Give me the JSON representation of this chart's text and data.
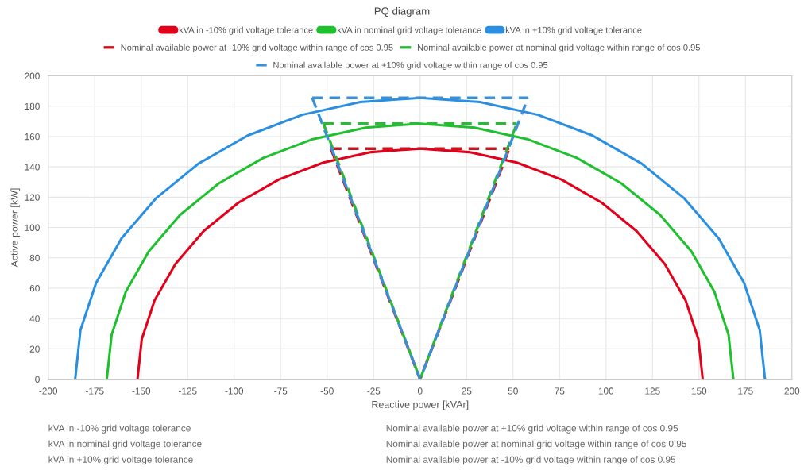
{
  "chart_data": {
    "type": "line",
    "title": "PQ diagram",
    "xlabel": "Reactive power [kVAr]",
    "ylabel": "Active power [kW]",
    "xlim": [
      -200,
      200
    ],
    "xticks": [
      -200,
      -175,
      -150,
      -125,
      -100,
      -75,
      -50,
      -25,
      0,
      25,
      50,
      75,
      100,
      125,
      150,
      175,
      200
    ],
    "ylim": [
      0,
      200
    ],
    "yticks": [
      0,
      20,
      40,
      60,
      80,
      100,
      120,
      140,
      160,
      180,
      200
    ],
    "grid": true,
    "legend": "top",
    "marker": "none",
    "series": [
      {
        "name": "kVA in -10% grid voltage tolerance",
        "color": "#e3001b",
        "line_style": "solid",
        "x": [
          -152,
          -149.7,
          -142.8,
          -131.6,
          -116.4,
          -97.7,
          -76,
          -52,
          -26.4,
          0,
          26.4,
          52,
          76,
          97.7,
          116.4,
          131.6,
          142.8,
          149.7,
          152
        ],
        "values": [
          0,
          26.4,
          52,
          76,
          97.7,
          116.4,
          131.6,
          142.8,
          149.7,
          152,
          149.7,
          142.8,
          131.6,
          116.4,
          97.7,
          76,
          52,
          26.4,
          0
        ]
      },
      {
        "name": "kVA in nominal grid voltage tolerance",
        "color": "#1ec02e",
        "line_style": "solid",
        "x": [
          -168.5,
          -165.9,
          -158.3,
          -145.9,
          -129.1,
          -108.3,
          -84.3,
          -57.6,
          -29.3,
          0,
          29.3,
          57.6,
          84.3,
          108.3,
          129.1,
          145.9,
          158.3,
          165.9,
          168.5
        ],
        "values": [
          0,
          29.3,
          57.6,
          84.3,
          108.3,
          129.1,
          145.9,
          158.3,
          165.9,
          168.5,
          165.9,
          158.3,
          145.9,
          129.1,
          108.3,
          84.3,
          57.6,
          29.3,
          0
        ]
      },
      {
        "name": "kVA in +10% grid voltage tolerance",
        "color": "#2a8fe0",
        "line_style": "solid",
        "x": [
          -185.5,
          -182.7,
          -174.3,
          -160.6,
          -142.1,
          -119.2,
          -92.8,
          -63.4,
          -32.2,
          0,
          32.2,
          63.4,
          92.8,
          119.2,
          142.1,
          160.6,
          174.3,
          182.7,
          185.5
        ],
        "values": [
          0,
          32.2,
          63.4,
          92.8,
          119.2,
          142.1,
          160.6,
          174.3,
          182.7,
          185.5,
          182.7,
          174.3,
          160.6,
          142.1,
          119.2,
          92.8,
          63.4,
          32.2,
          0
        ]
      },
      {
        "name": "Nominal available power at -10% grid voltage within range of cos 0.95",
        "color": "#c8141e",
        "line_style": "dashed",
        "x": [
          -48,
          0,
          48
        ],
        "values": [
          152,
          0,
          152
        ]
      },
      {
        "color": "#c8141e",
        "line_style": "dashed",
        "x": [
          -48,
          48
        ],
        "values": [
          152,
          152
        ]
      },
      {
        "name": "Nominal available power at nominal grid voltage within range of cos 0.95",
        "color": "#2cb93a",
        "line_style": "dashed",
        "x": [
          -52,
          0,
          52
        ],
        "values": [
          168.5,
          0,
          168.5
        ]
      },
      {
        "color": "#2cb93a",
        "line_style": "dashed",
        "x": [
          -52,
          52
        ],
        "values": [
          168.5,
          168.5
        ]
      },
      {
        "name": "Nominal available power at +10% grid voltage within range of cos 0.95",
        "color": "#3a90d8",
        "line_style": "dashed",
        "x": [
          -58,
          0,
          58
        ],
        "values": [
          185.5,
          0,
          185.5
        ]
      },
      {
        "color": "#3a90d8",
        "line_style": "dashed",
        "x": [
          -58,
          58
        ],
        "values": [
          185.5,
          185.5
        ]
      }
    ],
    "annotations": [
      "kVA in -10% grid voltage tolerance",
      "kVA in nominal grid voltage tolerance",
      "kVA in +10% grid voltage tolerance",
      "Nominal available power at +10% grid voltage within range of cos 0.95",
      "Nominal available power at nominal grid voltage within range of cos 0.95",
      "Nominal available power at -10% grid voltage within range of cos 0.95"
    ]
  }
}
